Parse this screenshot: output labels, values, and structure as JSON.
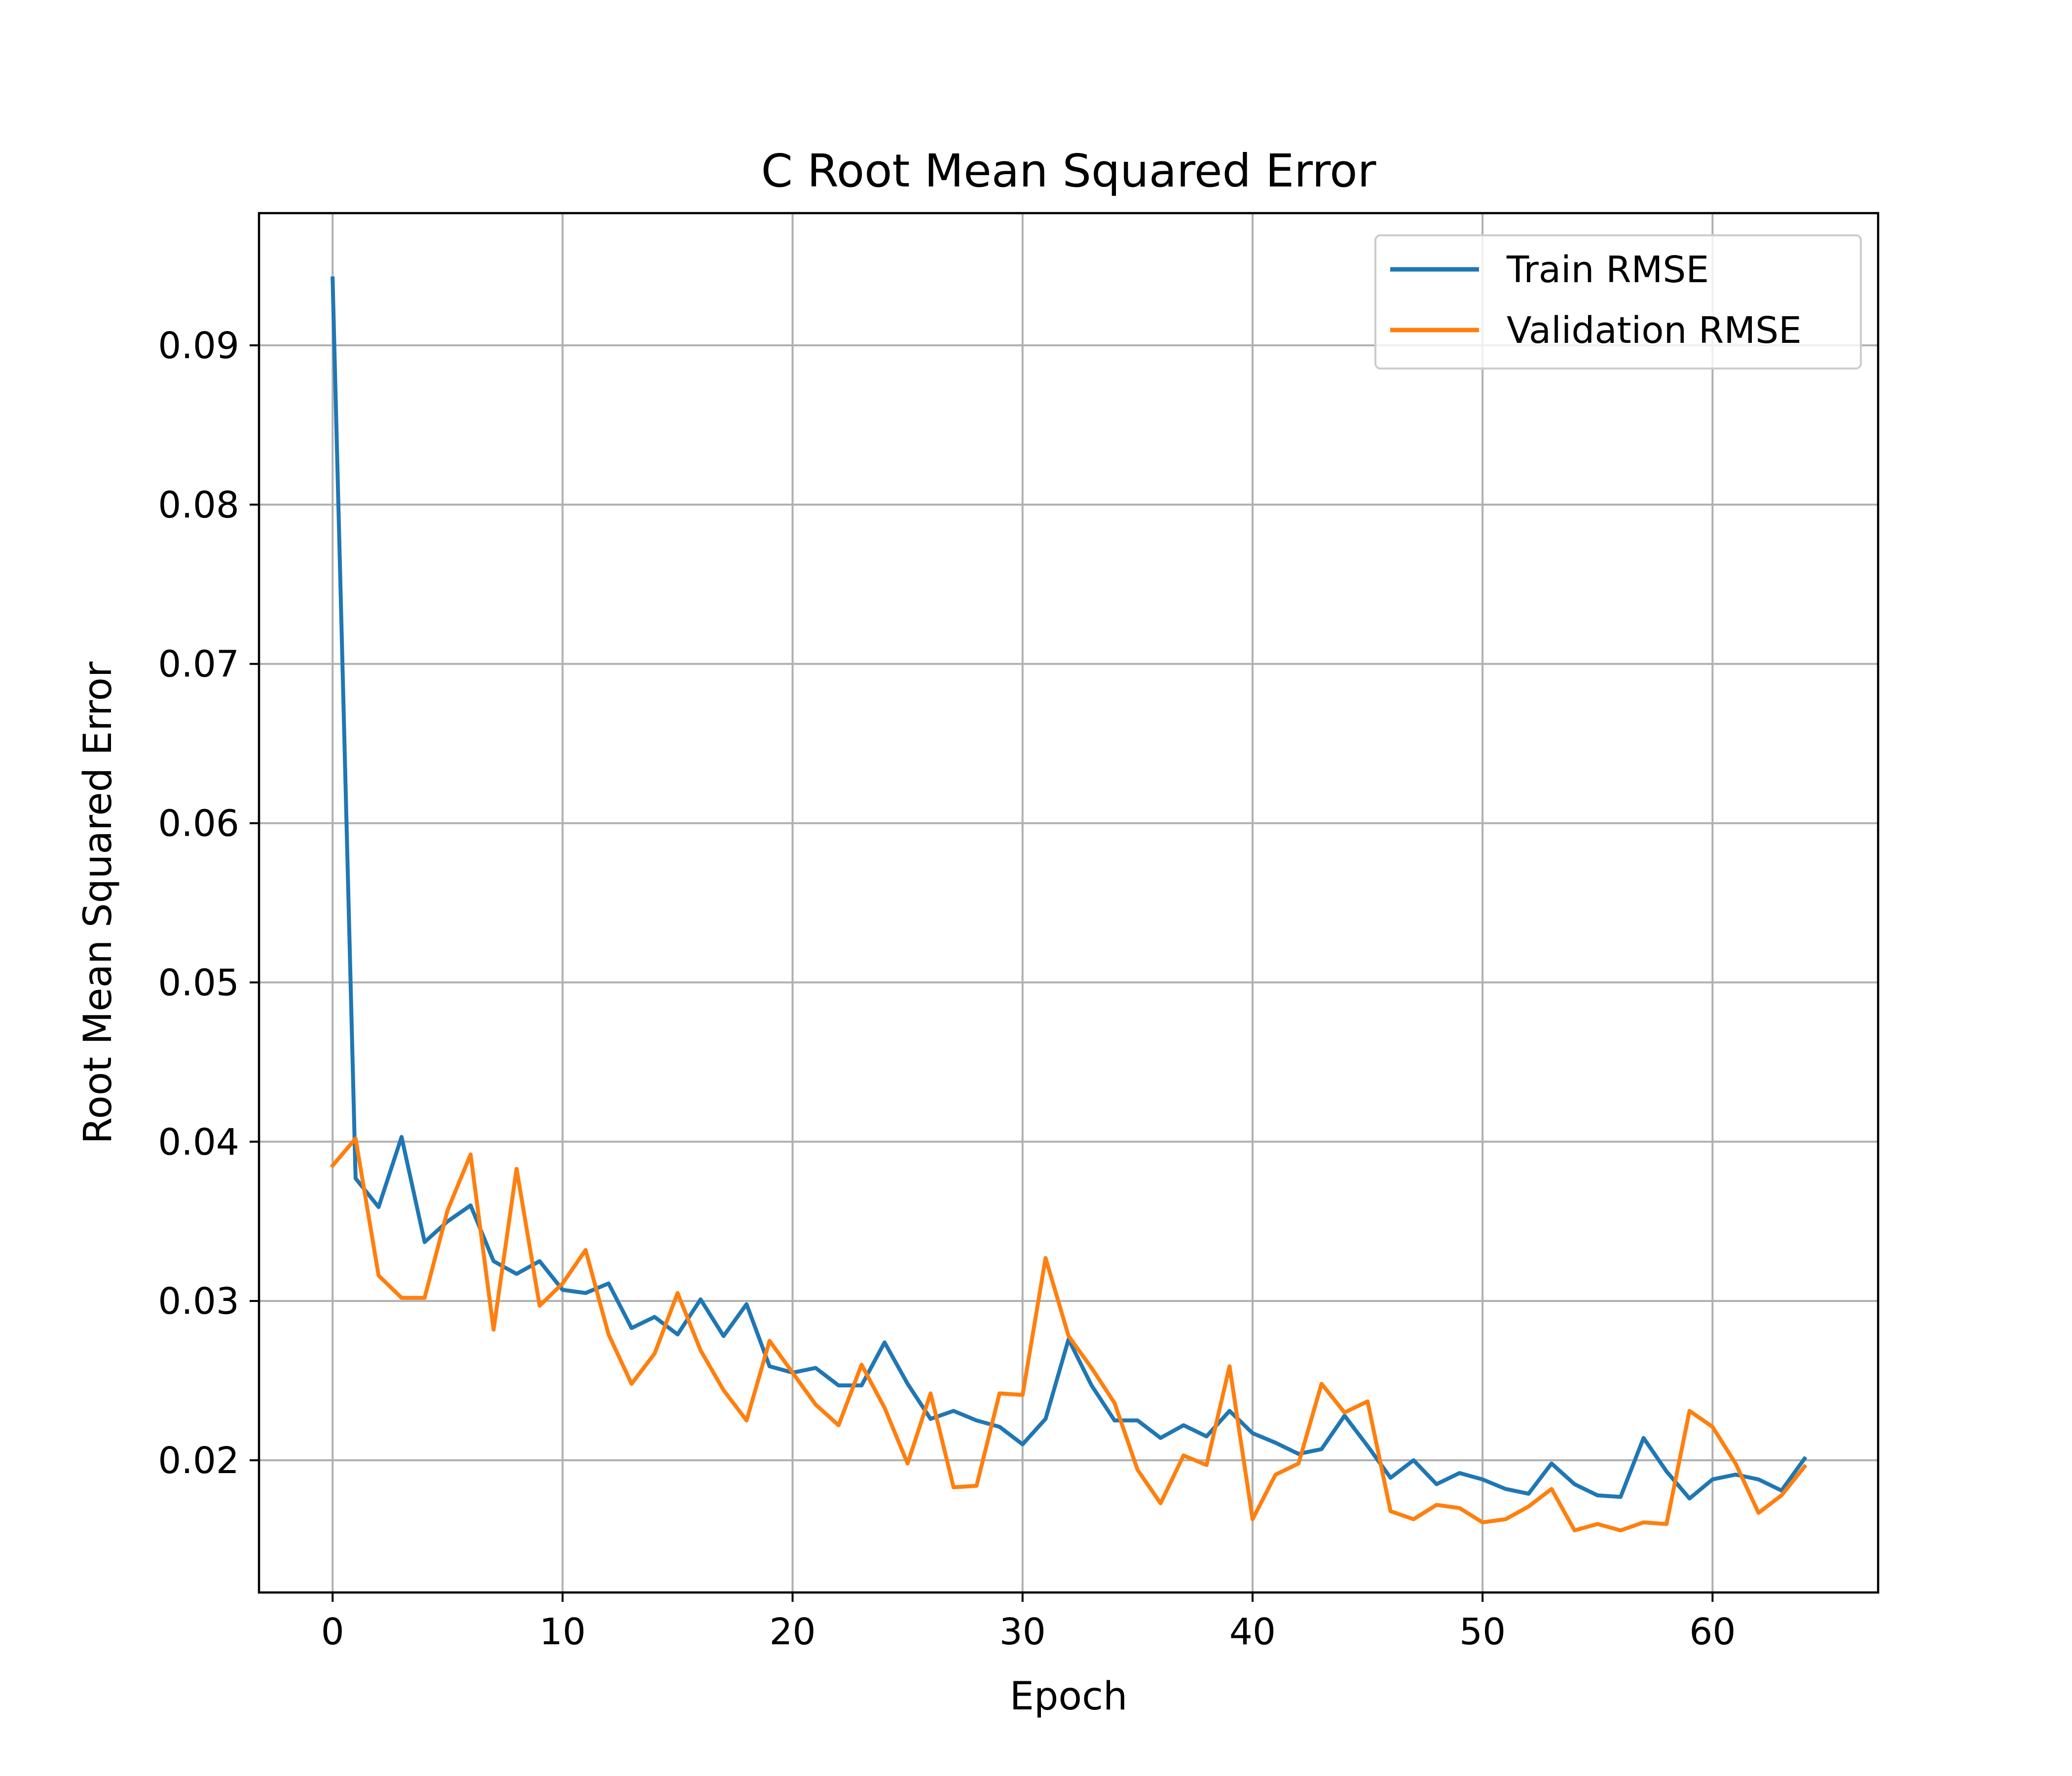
{
  "chart_data": {
    "type": "line",
    "title": "C Root Mean Squared Error",
    "xlabel": "Epoch",
    "ylabel": "Root Mean Squared Error",
    "xlim": [
      -3.2,
      67.2
    ],
    "ylim": [
      0.0117,
      0.0983
    ],
    "xticks": [
      0,
      10,
      20,
      30,
      40,
      50,
      60
    ],
    "yticks": [
      0.02,
      0.03,
      0.04,
      0.05,
      0.06,
      0.07,
      0.08,
      0.09
    ],
    "xtick_labels": [
      "0",
      "10",
      "20",
      "30",
      "40",
      "50",
      "60"
    ],
    "ytick_labels": [
      "0.02",
      "0.03",
      "0.04",
      "0.05",
      "0.06",
      "0.07",
      "0.08",
      "0.09"
    ],
    "grid": true,
    "legend_position": "top-right",
    "x": [
      0,
      1,
      2,
      3,
      4,
      5,
      6,
      7,
      8,
      9,
      10,
      11,
      12,
      13,
      14,
      15,
      16,
      17,
      18,
      19,
      20,
      21,
      22,
      23,
      24,
      25,
      26,
      27,
      28,
      29,
      30,
      31,
      32,
      33,
      34,
      35,
      36,
      37,
      38,
      39,
      40,
      41,
      42,
      43,
      44,
      45,
      46,
      47,
      48,
      49,
      50,
      51,
      52,
      53,
      54,
      55,
      56,
      57,
      58,
      59,
      60,
      61,
      62,
      63,
      64
    ],
    "series": [
      {
        "name": "Train RMSE",
        "color": "#1f77b4",
        "values": [
          0.0942,
          0.0377,
          0.0359,
          0.0403,
          0.0337,
          0.035,
          0.036,
          0.0325,
          0.0317,
          0.0325,
          0.0307,
          0.0305,
          0.0311,
          0.0283,
          0.029,
          0.0279,
          0.0301,
          0.0278,
          0.0298,
          0.0259,
          0.0255,
          0.0258,
          0.0247,
          0.0247,
          0.0274,
          0.0248,
          0.0226,
          0.0231,
          0.0225,
          0.0221,
          0.021,
          0.0226,
          0.0276,
          0.0247,
          0.0225,
          0.0225,
          0.0214,
          0.0222,
          0.0215,
          0.0231,
          0.0217,
          0.0211,
          0.0204,
          0.0207,
          0.0228,
          0.0209,
          0.0189,
          0.02,
          0.0185,
          0.0192,
          0.0188,
          0.0182,
          0.0179,
          0.0198,
          0.0185,
          0.0178,
          0.0177,
          0.0214,
          0.0193,
          0.0176,
          0.0188,
          0.0191,
          0.0188,
          0.0181,
          0.0201
        ]
      },
      {
        "name": "Validation RMSE",
        "color": "#ff7f0e",
        "values": [
          0.0385,
          0.0402,
          0.0316,
          0.0302,
          0.0302,
          0.0357,
          0.0392,
          0.0282,
          0.0383,
          0.0297,
          0.0311,
          0.0332,
          0.0279,
          0.0248,
          0.0267,
          0.0305,
          0.0269,
          0.0244,
          0.0225,
          0.0275,
          0.0255,
          0.0235,
          0.0222,
          0.026,
          0.0233,
          0.0198,
          0.0242,
          0.0183,
          0.0184,
          0.0242,
          0.0241,
          0.0327,
          0.0278,
          0.0258,
          0.0236,
          0.0194,
          0.0173,
          0.0203,
          0.0197,
          0.0259,
          0.0163,
          0.0191,
          0.0198,
          0.0248,
          0.023,
          0.0237,
          0.0168,
          0.0163,
          0.0172,
          0.017,
          0.0161,
          0.0163,
          0.0171,
          0.0182,
          0.0156,
          0.016,
          0.0156,
          0.0161,
          0.016,
          0.0231,
          0.0221,
          0.0198,
          0.0167,
          0.0178,
          0.0196
        ]
      }
    ]
  }
}
